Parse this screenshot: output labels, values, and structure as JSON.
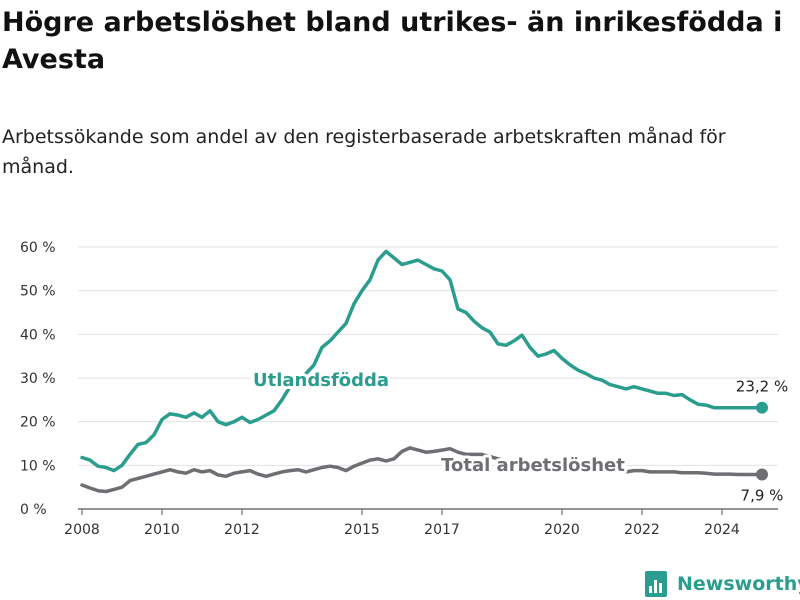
{
  "title": "Högre arbetslöshet bland utrikes- än inrikesfödda i Avesta",
  "subtitle": "Arbetssökande som andel av den registerbaserade arbetskraften månad för månad.",
  "brand": "Newsworthy",
  "chart_data": {
    "type": "line",
    "title": "Högre arbetslöshet bland utrikes- än inrikesfödda i Avesta",
    "subtitle": "Arbetssökande som andel av den registerbaserade arbetskraften månad för månad.",
    "xlabel": "",
    "ylabel": "",
    "xlim": [
      2007.9,
      2025.4
    ],
    "ylim": [
      0,
      60
    ],
    "grid": true,
    "x_ticks": [
      2008,
      2010,
      2012,
      2015,
      2017,
      2020,
      2022,
      2024
    ],
    "y_ticks": [
      {
        "value": 0,
        "label": "0 %"
      },
      {
        "value": 10,
        "label": "10 %"
      },
      {
        "value": 20,
        "label": "20 %"
      },
      {
        "value": 30,
        "label": "30 %"
      },
      {
        "value": 40,
        "label": "40 %"
      },
      {
        "value": 50,
        "label": "50 %"
      },
      {
        "value": 60,
        "label": "60 %"
      }
    ],
    "series": [
      {
        "name": "Utlandsfödda",
        "color": "#2a9d8f",
        "last_label": "23,2 %",
        "x": [
          2008.0,
          2008.2,
          2008.4,
          2008.6,
          2008.8,
          2009.0,
          2009.2,
          2009.4,
          2009.6,
          2009.8,
          2010.0,
          2010.2,
          2010.4,
          2010.6,
          2010.8,
          2011.0,
          2011.2,
          2011.4,
          2011.6,
          2011.8,
          2012.0,
          2012.2,
          2012.4,
          2012.6,
          2012.8,
          2013.0,
          2013.2,
          2013.4,
          2013.6,
          2013.8,
          2014.0,
          2014.2,
          2014.4,
          2014.6,
          2014.8,
          2015.0,
          2015.2,
          2015.4,
          2015.6,
          2015.8,
          2016.0,
          2016.2,
          2016.4,
          2016.6,
          2016.8,
          2017.0,
          2017.2,
          2017.4,
          2017.6,
          2017.8,
          2018.0,
          2018.2,
          2018.4,
          2018.6,
          2018.8,
          2019.0,
          2019.2,
          2019.4,
          2019.6,
          2019.8,
          2020.0,
          2020.2,
          2020.4,
          2020.6,
          2020.8,
          2021.0,
          2021.2,
          2021.4,
          2021.6,
          2021.8,
          2022.0,
          2022.2,
          2022.4,
          2022.6,
          2022.8,
          2023.0,
          2023.2,
          2023.4,
          2023.6,
          2023.8,
          2024.0,
          2024.2,
          2024.4,
          2024.6,
          2024.8,
          2025.0
        ],
        "values": [
          11.8,
          11.2,
          9.8,
          9.5,
          8.8,
          10.0,
          12.5,
          14.8,
          15.2,
          17.0,
          20.5,
          21.8,
          21.5,
          21.0,
          22.0,
          21.0,
          22.5,
          20.0,
          19.3,
          20.0,
          21.0,
          19.8,
          20.5,
          21.5,
          22.5,
          25.0,
          28.0,
          29.5,
          31.0,
          33.0,
          37.0,
          38.5,
          40.5,
          42.5,
          47.0,
          50.0,
          52.5,
          57.0,
          59.0,
          57.5,
          56.0,
          56.5,
          57.0,
          56.0,
          55.0,
          54.5,
          52.5,
          45.8,
          45.0,
          43.0,
          41.5,
          40.5,
          37.8,
          37.5,
          38.5,
          39.8,
          37.0,
          35.0,
          35.5,
          36.3,
          34.5,
          33.0,
          31.8,
          31.0,
          30.0,
          29.5,
          28.5,
          28.0,
          27.5,
          28.0,
          27.5,
          27.0,
          26.5,
          26.5,
          26.0,
          26.2,
          25.0,
          24.0,
          23.8,
          23.2,
          23.2,
          23.2,
          23.2,
          23.2,
          23.2,
          23.2
        ]
      },
      {
        "name": "Total arbetslöshet",
        "color": "#6e6e73",
        "last_label": "7,9 %",
        "x": [
          2008.0,
          2008.2,
          2008.4,
          2008.6,
          2008.8,
          2009.0,
          2009.2,
          2009.4,
          2009.6,
          2009.8,
          2010.0,
          2010.2,
          2010.4,
          2010.6,
          2010.8,
          2011.0,
          2011.2,
          2011.4,
          2011.6,
          2011.8,
          2012.0,
          2012.2,
          2012.4,
          2012.6,
          2012.8,
          2013.0,
          2013.2,
          2013.4,
          2013.6,
          2013.8,
          2014.0,
          2014.2,
          2014.4,
          2014.6,
          2014.8,
          2015.0,
          2015.2,
          2015.4,
          2015.6,
          2015.8,
          2016.0,
          2016.2,
          2016.4,
          2016.6,
          2016.8,
          2017.0,
          2017.2,
          2017.4,
          2017.6,
          2017.8,
          2018.0,
          2018.2,
          2018.4,
          2018.6,
          2018.8,
          2019.0,
          2019.2,
          2019.4,
          2019.6,
          2019.8,
          2020.0,
          2020.2,
          2020.4,
          2020.6,
          2020.8,
          2021.0,
          2021.2,
          2021.4,
          2021.6,
          2021.8,
          2022.0,
          2022.2,
          2022.4,
          2022.6,
          2022.8,
          2023.0,
          2023.2,
          2023.4,
          2023.6,
          2023.8,
          2024.0,
          2024.2,
          2024.4,
          2024.6,
          2024.8,
          2025.0
        ],
        "values": [
          5.5,
          4.8,
          4.2,
          4.0,
          4.5,
          5.0,
          6.5,
          7.0,
          7.5,
          8.0,
          8.5,
          9.0,
          8.5,
          8.2,
          9.0,
          8.5,
          8.8,
          7.8,
          7.5,
          8.2,
          8.5,
          8.8,
          8.0,
          7.5,
          8.0,
          8.5,
          8.8,
          9.0,
          8.5,
          9.0,
          9.5,
          9.8,
          9.5,
          8.8,
          9.8,
          10.5,
          11.2,
          11.5,
          11.0,
          11.5,
          13.2,
          14.0,
          13.5,
          13.0,
          13.2,
          13.5,
          13.8,
          13.0,
          12.5,
          12.5,
          12.5,
          12.0,
          11.5,
          11.0,
          10.8,
          10.5,
          10.2,
          10.0,
          10.0,
          10.5,
          10.2,
          10.0,
          9.5,
          9.5,
          9.2,
          9.0,
          9.0,
          8.8,
          8.5,
          8.8,
          8.8,
          8.5,
          8.5,
          8.5,
          8.5,
          8.3,
          8.3,
          8.3,
          8.2,
          8.0,
          8.0,
          8.0,
          7.9,
          7.9,
          7.9,
          7.9
        ]
      }
    ]
  }
}
